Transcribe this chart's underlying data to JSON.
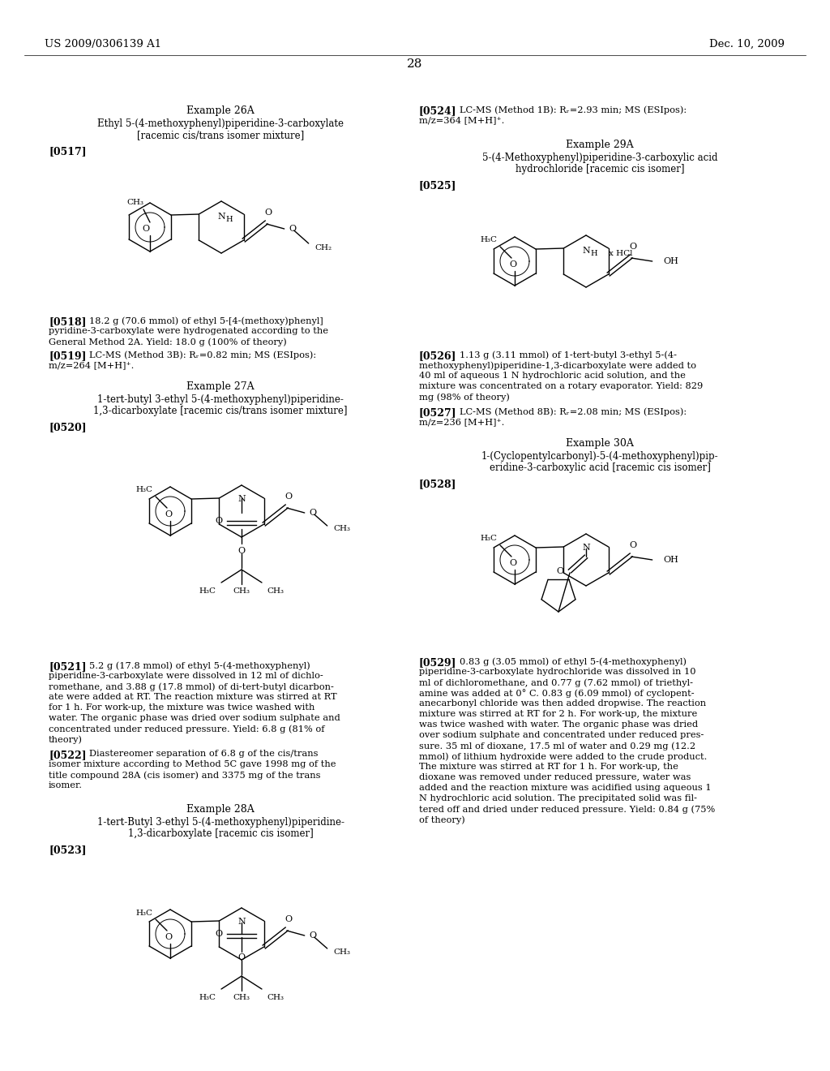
{
  "bg": "#ffffff",
  "header_left": "US 2009/0306139 A1",
  "header_right": "Dec. 10, 2009",
  "page_num": "28"
}
